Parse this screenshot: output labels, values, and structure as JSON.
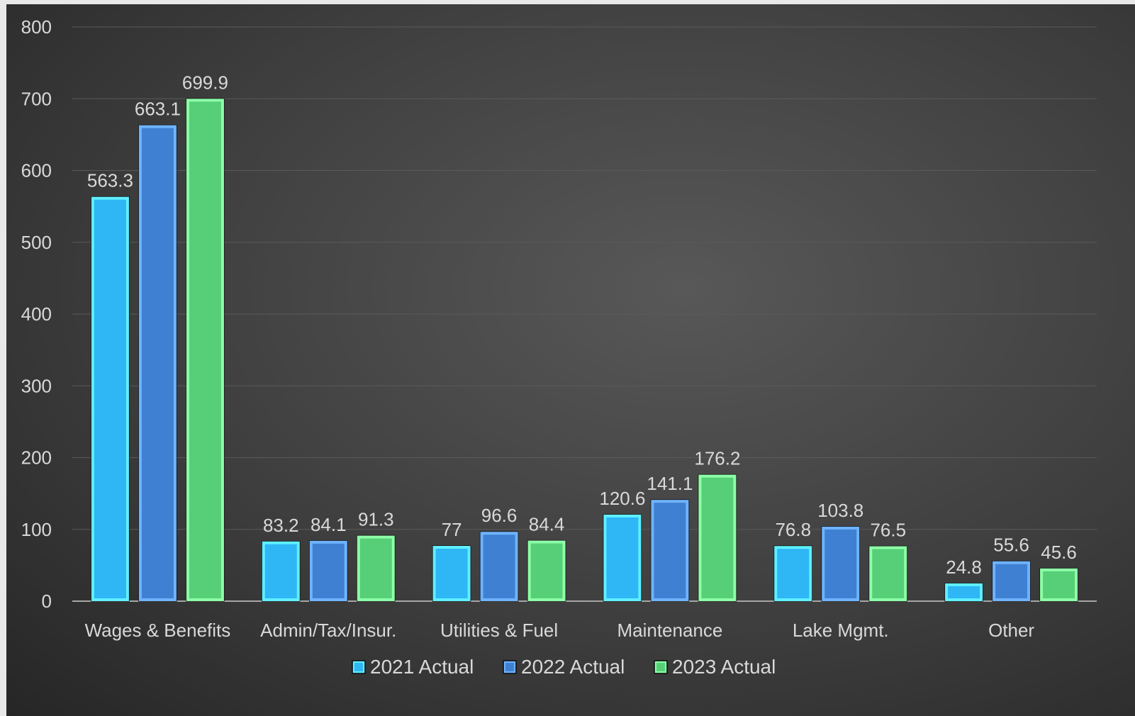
{
  "colors": {
    "series": [
      "#2eb6f5",
      "#4080d2",
      "#56cf78"
    ],
    "series_edge": [
      "#5ff0ff",
      "#6fb3ff",
      "#8effa8"
    ],
    "gridline": "#5a5a5a",
    "baseline": "#a6a6a6",
    "text": "#d9d9d9"
  },
  "chart_data": {
    "type": "bar",
    "categories": [
      "Wages & Benefits",
      "Admin/Tax/Insur.",
      "Utilities & Fuel",
      "Maintenance",
      "Lake Mgmt.",
      "Other"
    ],
    "series": [
      {
        "name": "2021 Actual",
        "values": [
          563.3,
          83.2,
          77,
          120.6,
          76.8,
          24.8
        ]
      },
      {
        "name": "2022 Actual",
        "values": [
          663.1,
          84.1,
          96.6,
          141.1,
          103.8,
          55.6
        ]
      },
      {
        "name": "2023 Actual",
        "values": [
          699.9,
          91.3,
          84.4,
          176.2,
          76.5,
          45.6
        ]
      }
    ],
    "ylim": [
      0,
      800
    ],
    "yticks": [
      0,
      100,
      200,
      300,
      400,
      500,
      600,
      700,
      800
    ],
    "grid": true,
    "legend_position": "bottom"
  }
}
